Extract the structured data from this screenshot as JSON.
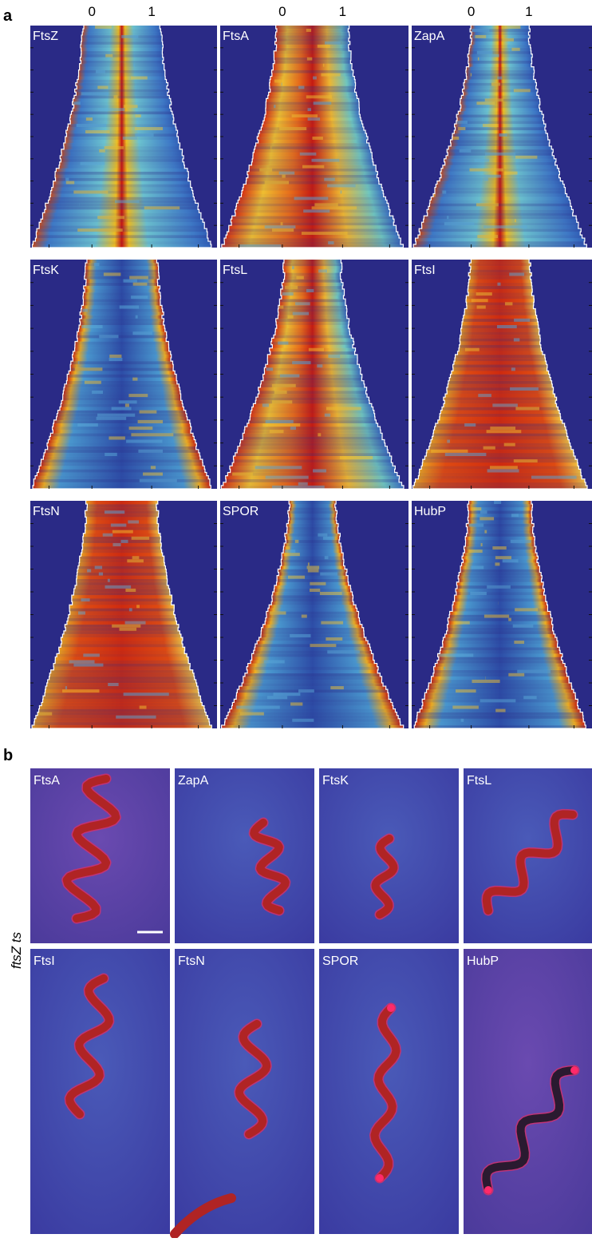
{
  "panel_a": {
    "label": "a",
    "axis_ticks": [
      "0",
      "1"
    ],
    "panels": [
      "FtsZ",
      "FtsA",
      "ZapA",
      "FtsK",
      "FtsL",
      "FtsI",
      "FtsN",
      "SPOR",
      "HubP"
    ]
  },
  "panel_b": {
    "label": "b",
    "side_label": "ftsZ ts",
    "panels": [
      "FtsA",
      "ZapA",
      "FtsK",
      "FtsL",
      "FtsI",
      "FtsN",
      "SPOR",
      "HubP"
    ]
  }
}
